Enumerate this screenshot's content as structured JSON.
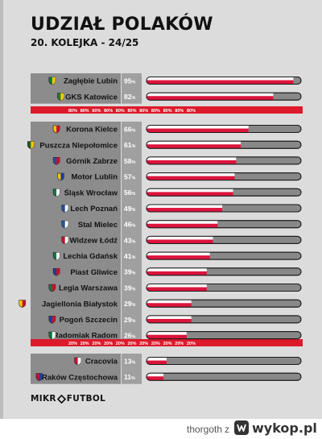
{
  "title": "UDZIAŁ POLAKÓW",
  "subtitle": "20. KOLEJKA - 24/25",
  "brand": {
    "left": "MIKR",
    "right": "FUTBOL"
  },
  "footer": {
    "user": "thorgoth",
    "separator": "z",
    "site": "wykop.pl"
  },
  "colors": {
    "bar_red": "#dc143c",
    "bar_gray": "#888888",
    "separator_red": "#dd1a2b",
    "teams_bg": "#8c8c8c",
    "percent_bg": "#a0a0a0"
  },
  "separators": [
    {
      "label": "80%",
      "count": 11
    },
    {
      "label": "20%",
      "count": 11
    }
  ],
  "chart_data": {
    "type": "bar",
    "title": "UDZIAŁ POLAKÓW",
    "subtitle": "20. KOLEJKA - 24/25",
    "xlim": [
      0,
      100
    ],
    "unit": "%",
    "categories": [
      "Zagłębie Lubin",
      "GKS Katowice",
      "Korona Kielce",
      "Puszcza Niepołomice",
      "Górnik Zabrze",
      "Motor Lublin",
      "Śląsk Wrocław",
      "Lech Poznań",
      "Stal Mielec",
      "Widzew Łódź",
      "Lechia Gdańsk",
      "Piast Gliwice",
      "Legia Warszawa",
      "Jagiellonia Białystok",
      "Pogoń Szczecin",
      "Radomiak Radom",
      "Cracovia",
      "Raków Częstochowa"
    ],
    "values": [
      95,
      82,
      66,
      61,
      58,
      57,
      56,
      49,
      46,
      43,
      41,
      39,
      39,
      29,
      29,
      26,
      13,
      11
    ],
    "value_labels": [
      "95%",
      "82%",
      "66%",
      "61%",
      "58%",
      "57%",
      "56%",
      "49%",
      "46%",
      "43%",
      "41%",
      "39%",
      "39%",
      "29%",
      "29%",
      "26%",
      "13%",
      "11%"
    ],
    "groups": [
      {
        "teams": [
          0,
          1
        ]
      },
      {
        "teams": [
          2,
          3,
          4,
          5,
          6,
          7,
          8,
          9,
          10,
          11,
          12,
          13,
          14,
          15
        ]
      },
      {
        "teams": [
          16,
          17
        ]
      }
    ],
    "crests": [
      "crest-zaglebie",
      "crest-gks",
      "crest-korona",
      "crest-puszcza",
      "crest-gornik",
      "crest-motor",
      "crest-slask",
      "crest-lech",
      "crest-stal",
      "crest-widzew",
      "crest-lechia",
      "crest-piast",
      "crest-legia",
      "crest-jagiellonia",
      "crest-pogon",
      "crest-radomiak",
      "crest-cracovia",
      "crest-rakow"
    ],
    "crest_colors": [
      [
        "#0a7a3a",
        "#f2c500"
      ],
      [
        "#2c7a2c",
        "#f0d000"
      ],
      [
        "#f2c500",
        "#c8102e"
      ],
      [
        "#1d5e2a",
        "#f2c500"
      ],
      [
        "#1d4fa8",
        "#c8102e"
      ],
      [
        "#f2c500",
        "#1d3f9a"
      ],
      [
        "#0a7a3a",
        "#ffffff"
      ],
      [
        "#1d4fa8",
        "#ffffff"
      ],
      [
        "#1d5aa8",
        "#ffffff"
      ],
      [
        "#c8102e",
        "#ffffff"
      ],
      [
        "#0a7a3a",
        "#ffffff"
      ],
      [
        "#1d3f9a",
        "#c8102e"
      ],
      [
        "#0a7a3a",
        "#c8102e"
      ],
      [
        "#f2c500",
        "#c8102e"
      ],
      [
        "#1d3f9a",
        "#c8102e"
      ],
      [
        "#0a7a3a",
        "#ffffff"
      ],
      [
        "#c8102e",
        "#ffffff"
      ],
      [
        "#c8102e",
        "#1d3f9a"
      ]
    ]
  }
}
